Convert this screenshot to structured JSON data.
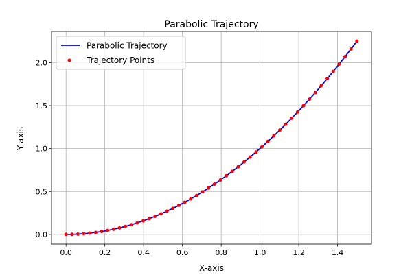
{
  "chart_data": {
    "type": "line",
    "title": "Parabolic Trajectory",
    "xlabel": "X-axis",
    "ylabel": "Y-axis",
    "xlim": [
      -0.075,
      1.575
    ],
    "ylim": [
      -0.1125,
      2.3625
    ],
    "xticks": [
      0.0,
      0.2,
      0.4,
      0.6,
      0.8,
      1.0,
      1.2,
      1.4
    ],
    "xtick_labels": [
      "0.0",
      "0.2",
      "0.4",
      "0.6",
      "0.8",
      "1.0",
      "1.2",
      "1.4"
    ],
    "yticks": [
      0.0,
      0.5,
      1.0,
      1.5,
      2.0
    ],
    "ytick_labels": [
      "0.0",
      "0.5",
      "1.0",
      "1.5",
      "2.0"
    ],
    "grid": true,
    "legend": {
      "position": "upper-left",
      "entries": [
        {
          "label": "Parabolic Trajectory",
          "kind": "line",
          "color": "#0000ff"
        },
        {
          "label": "Trajectory Points",
          "kind": "marker",
          "color": "#ff0000"
        }
      ]
    },
    "series": [
      {
        "name": "Parabolic Trajectory",
        "kind": "line",
        "color": "#0000ff",
        "x": [
          0.0,
          0.0306,
          0.0612,
          0.0918,
          0.1224,
          0.1531,
          0.1837,
          0.2143,
          0.2449,
          0.2755,
          0.3061,
          0.3367,
          0.3673,
          0.398,
          0.4286,
          0.4592,
          0.4898,
          0.5204,
          0.551,
          0.5816,
          0.6122,
          0.6429,
          0.6735,
          0.7041,
          0.7347,
          0.7653,
          0.7959,
          0.8265,
          0.8571,
          0.8878,
          0.9184,
          0.949,
          0.9796,
          1.0102,
          1.0408,
          1.0714,
          1.102,
          1.1327,
          1.1633,
          1.1939,
          1.2245,
          1.2551,
          1.2857,
          1.3163,
          1.3469,
          1.3776,
          1.4082,
          1.4388,
          1.4694,
          1.5
        ],
        "y": [
          0.0,
          0.0009,
          0.0037,
          0.0084,
          0.015,
          0.0234,
          0.0337,
          0.0459,
          0.06,
          0.0759,
          0.0937,
          0.1134,
          0.1349,
          0.1584,
          0.1837,
          0.2109,
          0.2399,
          0.2708,
          0.3036,
          0.3383,
          0.3748,
          0.4133,
          0.4536,
          0.4958,
          0.5398,
          0.5857,
          0.6335,
          0.6831,
          0.7347,
          0.7881,
          0.8434,
          0.9006,
          0.9596,
          1.0205,
          1.0833,
          1.148,
          1.2145,
          1.283,
          1.3533,
          1.4254,
          1.4994,
          1.5753,
          1.6531,
          1.7328,
          1.8142,
          1.8978,
          1.983,
          2.0702,
          2.1591,
          2.25
        ]
      },
      {
        "name": "Trajectory Points",
        "kind": "scatter",
        "color": "#ff0000",
        "x": [
          0.0,
          0.0306,
          0.0612,
          0.0918,
          0.1224,
          0.1531,
          0.1837,
          0.2143,
          0.2449,
          0.2755,
          0.3061,
          0.3367,
          0.3673,
          0.398,
          0.4286,
          0.4592,
          0.4898,
          0.5204,
          0.551,
          0.5816,
          0.6122,
          0.6429,
          0.6735,
          0.7041,
          0.7347,
          0.7653,
          0.7959,
          0.8265,
          0.8571,
          0.8878,
          0.9184,
          0.949,
          0.9796,
          1.0102,
          1.0408,
          1.0714,
          1.102,
          1.1327,
          1.1633,
          1.1939,
          1.2245,
          1.2551,
          1.2857,
          1.3163,
          1.3469,
          1.3776,
          1.4082,
          1.4388,
          1.4694,
          1.5
        ],
        "y": [
          0.0,
          0.0009,
          0.0037,
          0.0084,
          0.015,
          0.0234,
          0.0337,
          0.0459,
          0.06,
          0.0759,
          0.0937,
          0.1134,
          0.1349,
          0.1584,
          0.1837,
          0.2109,
          0.2399,
          0.2708,
          0.3036,
          0.3383,
          0.3748,
          0.4133,
          0.4536,
          0.4958,
          0.5398,
          0.5857,
          0.6335,
          0.6831,
          0.7347,
          0.7881,
          0.8434,
          0.9006,
          0.9596,
          1.0205,
          1.0833,
          1.148,
          1.2145,
          1.283,
          1.3533,
          1.4254,
          1.4994,
          1.5753,
          1.6531,
          1.7328,
          1.8142,
          1.8978,
          1.983,
          2.0702,
          2.1591,
          2.25
        ]
      }
    ]
  }
}
